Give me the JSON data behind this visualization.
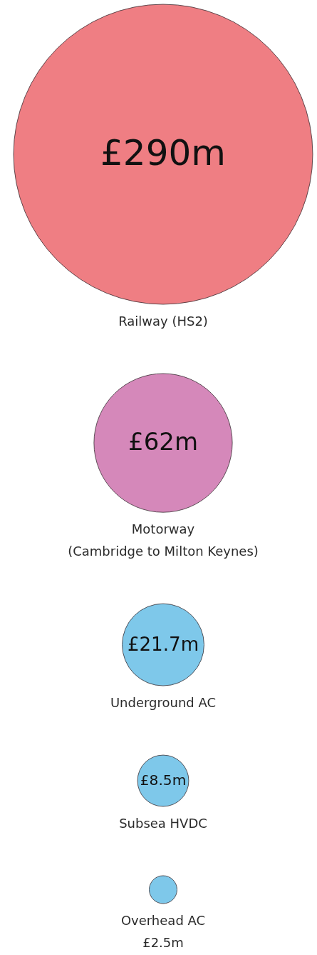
{
  "chart_data": {
    "type": "other",
    "categories": [
      "Railway (HS2)",
      "Motorway (Cambridge to Milton Keynes)",
      "Underground AC",
      "Subsea HVDC",
      "Overhead AC"
    ],
    "values": [
      290,
      62,
      21.7,
      8.5,
      2.5
    ],
    "value_labels": [
      "£290m",
      "£62m",
      "£21.7m",
      "£8.5m",
      "£2.5m"
    ],
    "colors": [
      "#ef7e83",
      "#d588ba",
      "#7ec8ea",
      "#7ec8ea",
      "#7ec8ea"
    ]
  }
}
